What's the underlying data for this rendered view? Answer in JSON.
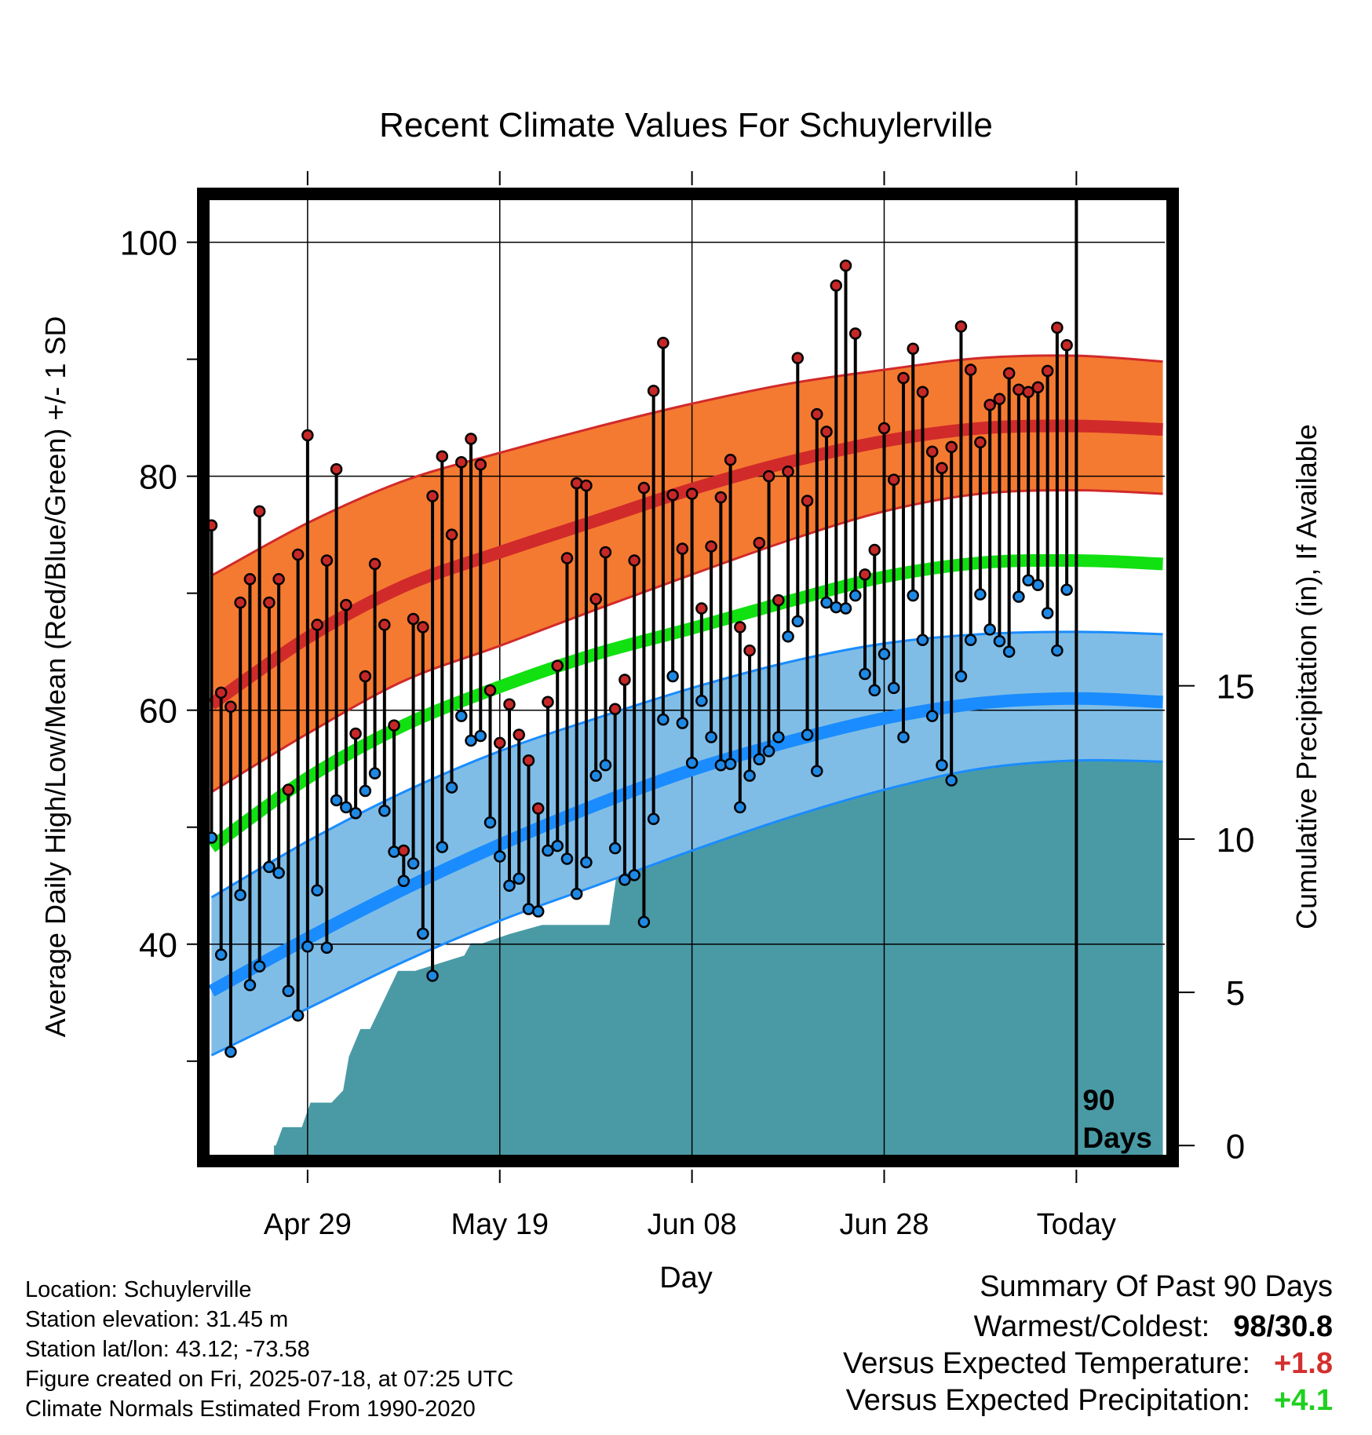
{
  "chart_data": {
    "type": "line",
    "title": "Recent Climate Values For Schuylerville",
    "xlabel": "Day",
    "ylabel": "Average Daily High/Low/Mean (Red/Blue/Green) +/- 1 SD",
    "y2label": "Cumulative Precipitation (in), If Available",
    "ylim": [
      22,
      104
    ],
    "y2lim": [
      -0.3,
      31
    ],
    "yticks": [
      100,
      80,
      60,
      40
    ],
    "y2ticks": [
      15,
      10,
      5,
      0
    ],
    "x_tick_labels": [
      {
        "day": 10,
        "label": "Apr 29"
      },
      {
        "day": 30,
        "label": "May 19"
      },
      {
        "day": 50,
        "label": "Jun 08"
      },
      {
        "day": 70,
        "label": "Jun 28"
      },
      {
        "day": 90,
        "label": "Today"
      }
    ],
    "today_marker": {
      "day": 90,
      "label_line1": "90",
      "label_line2": "Days"
    },
    "grid": true,
    "normals": {
      "days": [
        0,
        10,
        20,
        30,
        40,
        50,
        60,
        70,
        80,
        90,
        99
      ],
      "high_mean": [
        60.5,
        66.2,
        70.6,
        73.5,
        76.2,
        78.9,
        81.2,
        83.0,
        84.1,
        84.3,
        84.0
      ],
      "high_upper": [
        71.5,
        76.0,
        79.6,
        82.0,
        84.2,
        86.2,
        87.9,
        89.1,
        90.1,
        90.3,
        89.8
      ],
      "high_lower": [
        53.0,
        58.0,
        62.5,
        65.5,
        68.6,
        71.6,
        74.5,
        77.0,
        78.5,
        78.8,
        78.5
      ],
      "mean": [
        48.3,
        54.2,
        58.7,
        62.0,
        64.8,
        67.0,
        69.3,
        71.4,
        72.6,
        72.8,
        72.5
      ],
      "low_mean": [
        36.0,
        40.5,
        44.7,
        48.5,
        51.9,
        54.9,
        57.3,
        59.3,
        60.6,
        61.0,
        60.7
      ],
      "low_upper": [
        44.0,
        48.8,
        53.0,
        56.5,
        59.3,
        61.9,
        64.1,
        65.7,
        66.5,
        66.7,
        66.5
      ],
      "low_lower": [
        30.5,
        34.5,
        38.5,
        42.0,
        45.0,
        48.0,
        50.8,
        53.2,
        55.0,
        55.7,
        55.6
      ]
    },
    "daily": {
      "high": [
        75.8,
        61.5,
        60.3,
        69.2,
        71.2,
        77.0,
        69.2,
        71.2,
        53.2,
        73.3,
        83.5,
        67.3,
        72.8,
        80.6,
        69.0,
        58.0,
        62.9,
        72.5,
        67.3,
        58.7,
        48.0,
        67.8,
        67.1,
        78.3,
        81.7,
        75.0,
        81.2,
        83.2,
        81.0,
        61.7,
        57.2,
        60.5,
        57.9,
        55.7,
        51.6,
        60.7,
        63.8,
        73.0,
        79.4,
        79.2,
        69.5,
        73.5,
        60.1,
        62.6,
        72.8,
        79.0,
        87.3,
        91.4,
        78.4,
        73.8,
        78.5,
        68.7,
        74.0,
        78.2,
        81.4,
        67.1,
        65.1,
        74.3,
        80.0,
        69.4,
        80.4,
        90.1,
        77.9,
        85.3,
        83.8,
        96.3,
        98.0,
        92.2,
        71.6,
        73.7,
        84.1,
        79.7,
        88.4,
        90.9,
        87.2,
        82.1,
        80.7,
        82.5,
        92.8,
        89.1,
        82.9,
        86.1,
        86.6,
        88.8,
        87.4,
        87.2,
        87.6,
        89.0,
        92.7,
        91.2
      ],
      "low": [
        49.1,
        39.1,
        30.8,
        44.2,
        36.5,
        38.1,
        46.6,
        46.1,
        36.0,
        33.9,
        39.8,
        44.6,
        39.7,
        52.3,
        51.7,
        51.2,
        53.1,
        54.6,
        51.4,
        47.9,
        45.4,
        46.9,
        40.9,
        37.3,
        48.3,
        53.4,
        59.5,
        57.4,
        57.8,
        50.4,
        47.5,
        45.0,
        45.6,
        43.0,
        42.8,
        48.0,
        48.4,
        47.3,
        44.3,
        47.0,
        54.4,
        55.3,
        48.2,
        45.5,
        45.9,
        41.9,
        50.7,
        59.2,
        62.9,
        58.9,
        55.5,
        60.8,
        57.7,
        55.3,
        55.4,
        51.7,
        54.4,
        55.8,
        56.5,
        57.7,
        66.3,
        67.6,
        57.9,
        54.8,
        69.2,
        68.8,
        68.7,
        69.8,
        63.1,
        61.7,
        64.8,
        61.9,
        57.7,
        69.8,
        66.0,
        59.5,
        55.3,
        54.0,
        62.9,
        66.0,
        69.9,
        66.9,
        65.9,
        65.0,
        69.7,
        71.1,
        70.7,
        68.3,
        65.1,
        70.3
      ]
    },
    "precip": {
      "days": [
        0,
        6.7,
        7.4,
        9.4,
        10.3,
        12.5,
        13.7,
        14.3,
        15.5,
        16.5,
        19.4,
        20.1,
        21.2,
        26.3,
        27.0,
        28.2,
        31.0,
        34.4,
        36.0,
        41.4,
        42.6,
        45.0,
        48.2,
        48.6,
        49.2,
        49.6,
        50.9,
        52.0,
        55.4,
        57.0,
        58.3,
        60.5,
        62.8,
        64.0,
        70.0,
        70.5,
        75.0,
        80.0,
        82.8,
        83.5,
        85.0,
        89.0,
        99.0
      ],
      "values": [
        0,
        0,
        0.6,
        0.6,
        1.4,
        1.4,
        1.8,
        2.9,
        3.8,
        3.8,
        5.7,
        5.7,
        5.7,
        6.2,
        6.6,
        6.6,
        6.9,
        7.2,
        7.2,
        7.2,
        9.8,
        9.8,
        9.8,
        10.1,
        10.2,
        11.3,
        11.3,
        11.9,
        12.0,
        12.0,
        12.9,
        12.9,
        13.1,
        13.1,
        13.4,
        13.8,
        13.8,
        14.1,
        14.9,
        14.9,
        15.1,
        15.1,
        15.1
      ],
      "start_day": 6.5
    },
    "colors": {
      "high_band": "#f47a31",
      "high_line": "#d12a2a",
      "high_edge": "#d12a2a",
      "mean_line": "#11e011",
      "low_band": "#80bde6",
      "low_line": "#1a8cff",
      "low_edge": "#1a8cff",
      "precip": "#4a9aa5",
      "high_dot": "#c62828",
      "low_dot": "#1e88e5"
    }
  },
  "info": {
    "location": "Location: Schuylerville",
    "elevation": "Station elevation: 31.45 m",
    "latlon": "Station lat/lon: 43.12; -73.58",
    "created": "Figure created on Fri, 2025-07-18, at 07:25 UTC",
    "normals": "Climate Normals Estimated From 1990-2020"
  },
  "summary": {
    "title": "Summary Of Past 90 Days",
    "warmest_label": "Warmest/Coldest:",
    "warmest_value": "98/30.8",
    "temp_label": "Versus Expected Temperature:",
    "temp_value": "+1.8",
    "temp_color": "#d32f2f",
    "precip_label": "Versus Expected Precipitation:",
    "precip_value": "+4.1",
    "precip_color": "#1ed11e"
  }
}
